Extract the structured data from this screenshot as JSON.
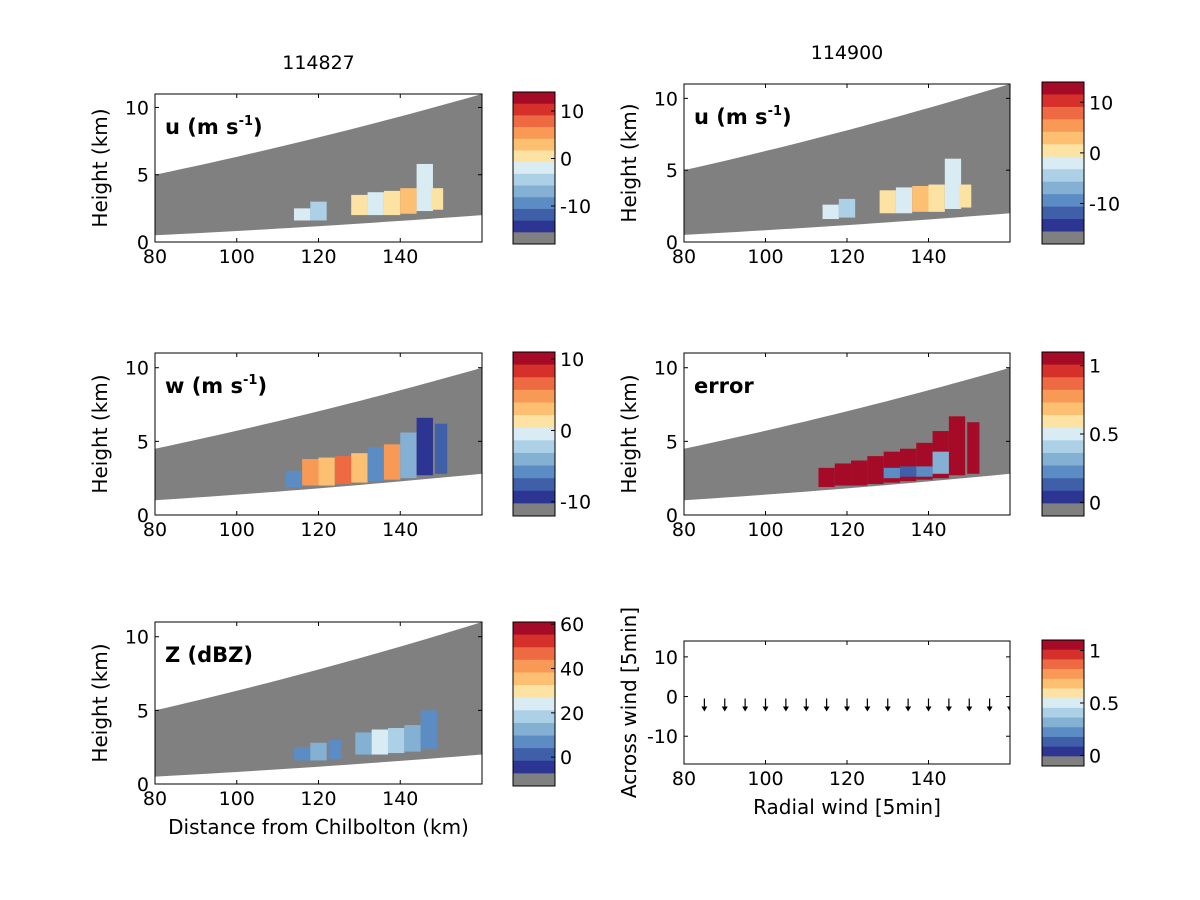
{
  "figure": {
    "titles": [
      "114827",
      "114900"
    ]
  },
  "colors": {
    "background_grey": "#808080",
    "colormap": [
      "#2c3592",
      "#3f5fa8",
      "#5c8cc4",
      "#84b0d4",
      "#acd1e6",
      "#d9ecf4",
      "#fde3a3",
      "#fdbf72",
      "#f89a55",
      "#ee6a43",
      "#d5302a",
      "#a50b26"
    ]
  },
  "chart_data": [
    {
      "type": "heatmap",
      "title": "114827",
      "annotation": "u (m s",
      "annotation_sup": "-1",
      "annotation_tail": ")",
      "xlabel": "",
      "ylabel": "Height (km)",
      "xlim": [
        80,
        160
      ],
      "ylim": [
        0,
        11
      ],
      "xticks": [
        "80",
        "100",
        "120",
        "140"
      ],
      "yticks": [
        "0",
        "5",
        "10"
      ],
      "beam": {
        "upper_start": 5.0,
        "upper_end": 11.0,
        "lower_start": 0.5,
        "lower_end": 2.0
      },
      "colorbar": {
        "ticks": [
          {
            "label": "10",
            "value": 10
          },
          {
            "label": "0",
            "value": 0
          },
          {
            "label": "-10",
            "value": -10
          }
        ],
        "min": -18,
        "max": 14
      },
      "echoes": [
        {
          "x": 116,
          "y0": 1.6,
          "y1": 2.5,
          "w": 4,
          "color": "#d9ecf4"
        },
        {
          "x": 120,
          "y0": 1.6,
          "y1": 3.0,
          "w": 4,
          "color": "#acd1e6"
        },
        {
          "x": 130,
          "y0": 2.0,
          "y1": 3.5,
          "w": 4,
          "color": "#fde3a3"
        },
        {
          "x": 134,
          "y0": 2.0,
          "y1": 3.7,
          "w": 4,
          "color": "#d9ecf4"
        },
        {
          "x": 138,
          "y0": 2.0,
          "y1": 3.8,
          "w": 4,
          "color": "#fde3a3"
        },
        {
          "x": 142,
          "y0": 2.1,
          "y1": 4.0,
          "w": 4,
          "color": "#fdbf72"
        },
        {
          "x": 146,
          "y0": 2.3,
          "y1": 5.8,
          "w": 4,
          "color": "#d9ecf4"
        },
        {
          "x": 149,
          "y0": 2.4,
          "y1": 4.0,
          "w": 3,
          "color": "#fde3a3"
        }
      ]
    },
    {
      "type": "heatmap",
      "title": "114900",
      "annotation": "u (m s",
      "annotation_sup": "-1",
      "annotation_tail": ")",
      "xlabel": "",
      "ylabel": "Height (km)",
      "xlim": [
        80,
        160
      ],
      "ylim": [
        0,
        11
      ],
      "xticks": [
        "80",
        "100",
        "120",
        "140"
      ],
      "yticks": [
        "0",
        "5",
        "10"
      ],
      "beam": {
        "upper_start": 5.0,
        "upper_end": 11.0,
        "lower_start": 0.5,
        "lower_end": 2.0
      },
      "colorbar": {
        "ticks": [
          {
            "label": "10",
            "value": 10
          },
          {
            "label": "0",
            "value": 0
          },
          {
            "label": "-10",
            "value": -10
          }
        ],
        "min": -18,
        "max": 14
      },
      "echoes": [
        {
          "x": 116,
          "y0": 1.6,
          "y1": 2.6,
          "w": 4,
          "color": "#d9ecf4"
        },
        {
          "x": 120,
          "y0": 1.7,
          "y1": 3.0,
          "w": 4,
          "color": "#acd1e6"
        },
        {
          "x": 130,
          "y0": 2.0,
          "y1": 3.6,
          "w": 4,
          "color": "#fde3a3"
        },
        {
          "x": 134,
          "y0": 2.0,
          "y1": 3.8,
          "w": 4,
          "color": "#d9ecf4"
        },
        {
          "x": 138,
          "y0": 2.1,
          "y1": 3.9,
          "w": 4,
          "color": "#fdbf72"
        },
        {
          "x": 142,
          "y0": 2.1,
          "y1": 4.0,
          "w": 4,
          "color": "#fde3a3"
        },
        {
          "x": 146,
          "y0": 2.3,
          "y1": 5.8,
          "w": 4,
          "color": "#d9ecf4"
        },
        {
          "x": 149,
          "y0": 2.4,
          "y1": 4.0,
          "w": 3,
          "color": "#fde3a3"
        }
      ]
    },
    {
      "type": "heatmap",
      "title": "",
      "annotation": "w (m s",
      "annotation_sup": "-1",
      "annotation_tail": ")",
      "xlabel": "",
      "ylabel": "Height (km)",
      "xlim": [
        80,
        160
      ],
      "ylim": [
        0,
        11
      ],
      "xticks": [
        "80",
        "100",
        "120",
        "140"
      ],
      "yticks": [
        "0",
        "5",
        "10"
      ],
      "beam": {
        "upper_start": 4.5,
        "upper_end": 10.0,
        "lower_start": 1.0,
        "lower_end": 2.8
      },
      "colorbar": {
        "ticks": [
          {
            "label": "10",
            "value": 10
          },
          {
            "label": "0",
            "value": 0
          },
          {
            "label": "-10",
            "value": -10
          }
        ],
        "min": -12,
        "max": 11
      },
      "echoes": [
        {
          "x": 114,
          "y0": 1.9,
          "y1": 3.0,
          "w": 4,
          "color": "#5c8cc4"
        },
        {
          "x": 118,
          "y0": 2.0,
          "y1": 3.8,
          "w": 4,
          "color": "#f89a55"
        },
        {
          "x": 122,
          "y0": 2.0,
          "y1": 3.9,
          "w": 4,
          "color": "#fdbf72"
        },
        {
          "x": 126,
          "y0": 2.1,
          "y1": 4.0,
          "w": 4,
          "color": "#ee6a43"
        },
        {
          "x": 130,
          "y0": 2.2,
          "y1": 4.2,
          "w": 4,
          "color": "#fdbf72"
        },
        {
          "x": 134,
          "y0": 2.3,
          "y1": 4.6,
          "w": 4,
          "color": "#5c8cc4"
        },
        {
          "x": 138,
          "y0": 2.4,
          "y1": 4.8,
          "w": 4,
          "color": "#f89a55"
        },
        {
          "x": 142,
          "y0": 2.5,
          "y1": 5.6,
          "w": 4,
          "color": "#84b0d4"
        },
        {
          "x": 146,
          "y0": 2.7,
          "y1": 6.6,
          "w": 4,
          "color": "#2c3592"
        },
        {
          "x": 150,
          "y0": 2.8,
          "y1": 6.2,
          "w": 3,
          "color": "#3f5fa8"
        }
      ]
    },
    {
      "type": "heatmap",
      "title": "",
      "annotation": "error",
      "annotation_sup": "",
      "annotation_tail": "",
      "xlabel": "",
      "ylabel": "Height (km)",
      "xlim": [
        80,
        160
      ],
      "ylim": [
        0,
        11
      ],
      "xticks": [
        "80",
        "100",
        "120",
        "140"
      ],
      "yticks": [
        "0",
        "5",
        "10"
      ],
      "beam": {
        "upper_start": 4.5,
        "upper_end": 10.0,
        "lower_start": 1.0,
        "lower_end": 2.8
      },
      "colorbar": {
        "ticks": [
          {
            "label": "1",
            "value": 1
          },
          {
            "label": "0.5",
            "value": 0.5
          },
          {
            "label": "0",
            "value": 0
          }
        ],
        "min": -0.1,
        "max": 1.1
      },
      "echoes": [
        {
          "x": 115,
          "y0": 1.9,
          "y1": 3.2,
          "w": 4,
          "color": "#a50b26"
        },
        {
          "x": 119,
          "y0": 2.0,
          "y1": 3.5,
          "w": 4,
          "color": "#a50b26"
        },
        {
          "x": 123,
          "y0": 2.0,
          "y1": 3.7,
          "w": 4,
          "color": "#a50b26"
        },
        {
          "x": 127,
          "y0": 2.1,
          "y1": 4.0,
          "w": 4,
          "color": "#a50b26"
        },
        {
          "x": 131,
          "y0": 2.2,
          "y1": 4.3,
          "w": 4,
          "color": "#a50b26"
        },
        {
          "x": 135,
          "y0": 2.3,
          "y1": 4.5,
          "w": 4,
          "color": "#a50b26"
        },
        {
          "x": 139,
          "y0": 2.4,
          "y1": 4.9,
          "w": 4,
          "color": "#a50b26"
        },
        {
          "x": 143,
          "y0": 2.5,
          "y1": 5.7,
          "w": 4,
          "color": "#a50b26"
        },
        {
          "x": 147,
          "y0": 2.7,
          "y1": 6.7,
          "w": 4,
          "color": "#a50b26"
        },
        {
          "x": 151,
          "y0": 2.8,
          "y1": 6.3,
          "w": 3,
          "color": "#a50b26"
        },
        {
          "x": 131,
          "y0": 2.5,
          "y1": 3.2,
          "w": 4,
          "color": "#5c8cc4"
        },
        {
          "x": 135,
          "y0": 2.6,
          "y1": 3.3,
          "w": 4,
          "color": "#3f5fa8"
        },
        {
          "x": 139,
          "y0": 2.6,
          "y1": 3.3,
          "w": 4,
          "color": "#5c8cc4"
        },
        {
          "x": 143,
          "y0": 2.8,
          "y1": 4.3,
          "w": 4,
          "color": "#84b0d4"
        }
      ]
    },
    {
      "type": "heatmap",
      "title": "",
      "annotation": "Z (dBZ)",
      "annotation_sup": "",
      "annotation_tail": "",
      "xlabel": "Distance from Chilbolton (km)",
      "ylabel": "Height (km)",
      "xlim": [
        80,
        160
      ],
      "ylim": [
        0,
        11
      ],
      "xticks": [
        "80",
        "100",
        "120",
        "140"
      ],
      "yticks": [
        "0",
        "5",
        "10"
      ],
      "beam": {
        "upper_start": 5.0,
        "upper_end": 11.0,
        "lower_start": 0.5,
        "lower_end": 2.0
      },
      "colorbar": {
        "ticks": [
          {
            "label": "60",
            "value": 60
          },
          {
            "label": "40",
            "value": 40
          },
          {
            "label": "20",
            "value": 20
          },
          {
            "label": "0",
            "value": 0
          }
        ],
        "min": -13,
        "max": 61
      },
      "echoes": [
        {
          "x": 116,
          "y0": 1.6,
          "y1": 2.5,
          "w": 4,
          "color": "#5c8cc4"
        },
        {
          "x": 120,
          "y0": 1.6,
          "y1": 2.8,
          "w": 4,
          "color": "#84b0d4"
        },
        {
          "x": 124,
          "y0": 1.7,
          "y1": 3.0,
          "w": 3,
          "color": "#5c8cc4"
        },
        {
          "x": 131,
          "y0": 2.0,
          "y1": 3.5,
          "w": 4,
          "color": "#84b0d4"
        },
        {
          "x": 135,
          "y0": 2.0,
          "y1": 3.7,
          "w": 4,
          "color": "#d9ecf4"
        },
        {
          "x": 139,
          "y0": 2.1,
          "y1": 3.8,
          "w": 4,
          "color": "#acd1e6"
        },
        {
          "x": 143,
          "y0": 2.2,
          "y1": 4.0,
          "w": 4,
          "color": "#84b0d4"
        },
        {
          "x": 147,
          "y0": 2.4,
          "y1": 5.0,
          "w": 4,
          "color": "#5c8cc4"
        }
      ]
    },
    {
      "type": "scatter",
      "title": "",
      "annotation": "",
      "annotation_sup": "",
      "annotation_tail": "",
      "xlabel": "Radial wind [5min]",
      "ylabel": "Across wind [5min]",
      "xlim": [
        80,
        160
      ],
      "ylim": [
        -17,
        14
      ],
      "xticks": [
        "80",
        "100",
        "120",
        "140"
      ],
      "yticks": [
        "10",
        "0",
        "-10"
      ],
      "colorbar": {
        "ticks": [
          {
            "label": "1",
            "value": 1
          },
          {
            "label": "0.5",
            "value": 0.5
          },
          {
            "label": "0",
            "value": 0
          }
        ],
        "min": -0.1,
        "max": 1.1
      },
      "x": [
        85,
        90,
        95,
        100,
        105,
        110,
        115,
        120,
        125,
        130,
        135,
        140,
        145,
        150,
        155,
        160
      ],
      "y": [
        -2,
        -2,
        -2,
        -2,
        -2,
        -2,
        -2,
        -2,
        -2,
        -2,
        -2,
        -2,
        -2,
        -2,
        -2,
        -2
      ]
    }
  ]
}
